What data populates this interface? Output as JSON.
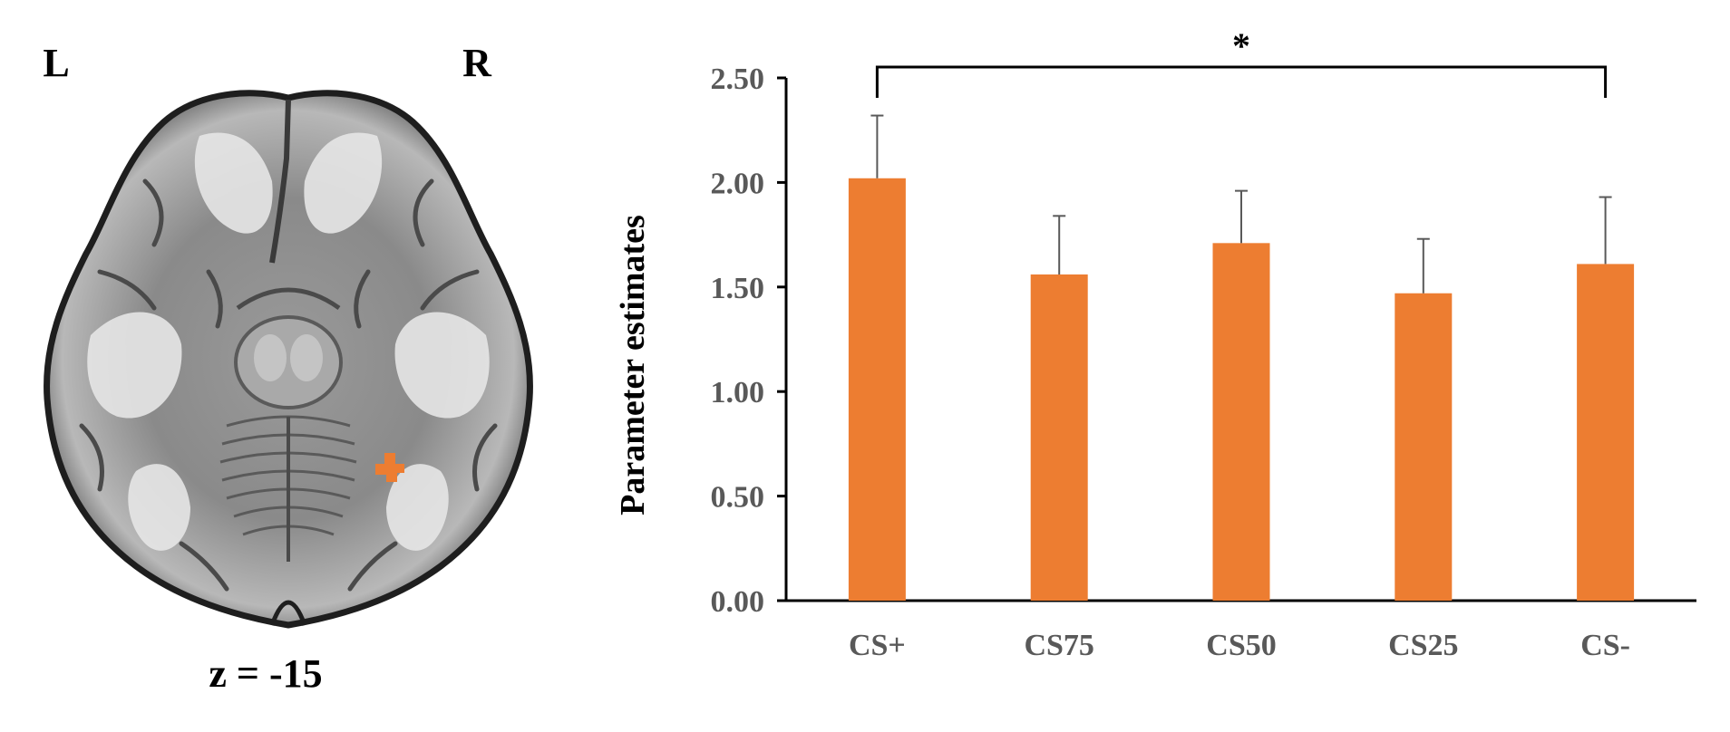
{
  "brain_panel": {
    "left_label": "L",
    "right_label": "R",
    "slice_label": "z = -15",
    "activation_color": "#ED7D31"
  },
  "chart_data": {
    "type": "bar",
    "categories": [
      "CS+",
      "CS75",
      "CS50",
      "CS25",
      "CS-"
    ],
    "values": [
      2.02,
      1.56,
      1.71,
      1.47,
      1.61
    ],
    "errors": [
      0.3,
      0.28,
      0.25,
      0.26,
      0.32
    ],
    "ylabel": "Parameter estimates",
    "xlabel": "",
    "title": "",
    "ylim": [
      0,
      2.5
    ],
    "yticks": [
      "0.00",
      "0.50",
      "1.00",
      "1.50",
      "2.00",
      "2.50"
    ],
    "grid": false,
    "bar_color": "#ED7D31",
    "significance": {
      "from": "CS+",
      "to": "CS-",
      "label": "*"
    }
  }
}
